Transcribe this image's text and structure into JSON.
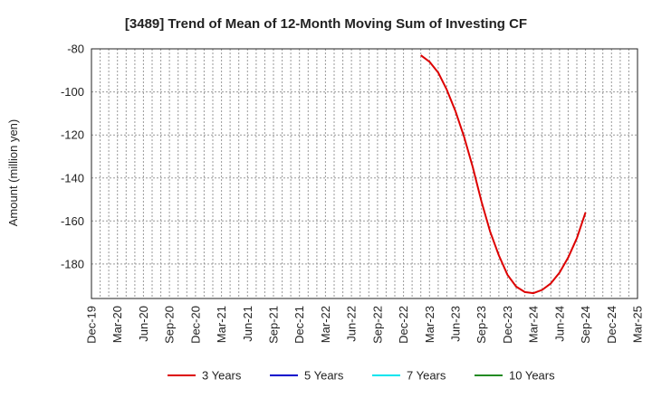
{
  "chart_data": {
    "type": "line",
    "title": "[3489]  Trend of Mean of 12-Month Moving Sum of Investing CF",
    "ylabel": "Amount (million yen)",
    "xlabel": "",
    "ylim": [
      -196,
      -80
    ],
    "yticks": [
      -80,
      -100,
      -120,
      -140,
      -160,
      -180
    ],
    "x_start": "Dec-19",
    "x_end": "Mar-25",
    "xticks": [
      "Dec-19",
      "Mar-20",
      "Jun-20",
      "Sep-20",
      "Dec-20",
      "Mar-21",
      "Jun-21",
      "Sep-21",
      "Dec-21",
      "Mar-22",
      "Jun-22",
      "Sep-22",
      "Dec-22",
      "Mar-23",
      "Jun-23",
      "Sep-23",
      "Dec-23",
      "Mar-24",
      "Jun-24",
      "Sep-24",
      "Dec-24",
      "Mar-25"
    ],
    "grid": true,
    "legend_position": "bottom",
    "series": [
      {
        "name": "3 Years",
        "color": "#dd0000",
        "x": [
          "Feb-23",
          "Mar-23",
          "Apr-23",
          "May-23",
          "Jun-23",
          "Jul-23",
          "Aug-23",
          "Sep-23",
          "Oct-23",
          "Nov-23",
          "Dec-23",
          "Jan-24",
          "Feb-24",
          "Mar-24",
          "Apr-24",
          "May-24",
          "Jun-24",
          "Jul-24",
          "Aug-24",
          "Sep-24"
        ],
        "values": [
          -83,
          -86,
          -91,
          -99,
          -109,
          -121,
          -135,
          -151,
          -165,
          -176,
          -185,
          -190.5,
          -193,
          -193.5,
          -192,
          -189,
          -184,
          -177,
          -168,
          -156
        ]
      },
      {
        "name": "5 Years",
        "color": "#0000cc",
        "x": [],
        "values": []
      },
      {
        "name": "7 Years",
        "color": "#00e5ee",
        "x": [],
        "values": []
      },
      {
        "name": "10 Years",
        "color": "#228b22",
        "x": [],
        "values": []
      }
    ]
  }
}
